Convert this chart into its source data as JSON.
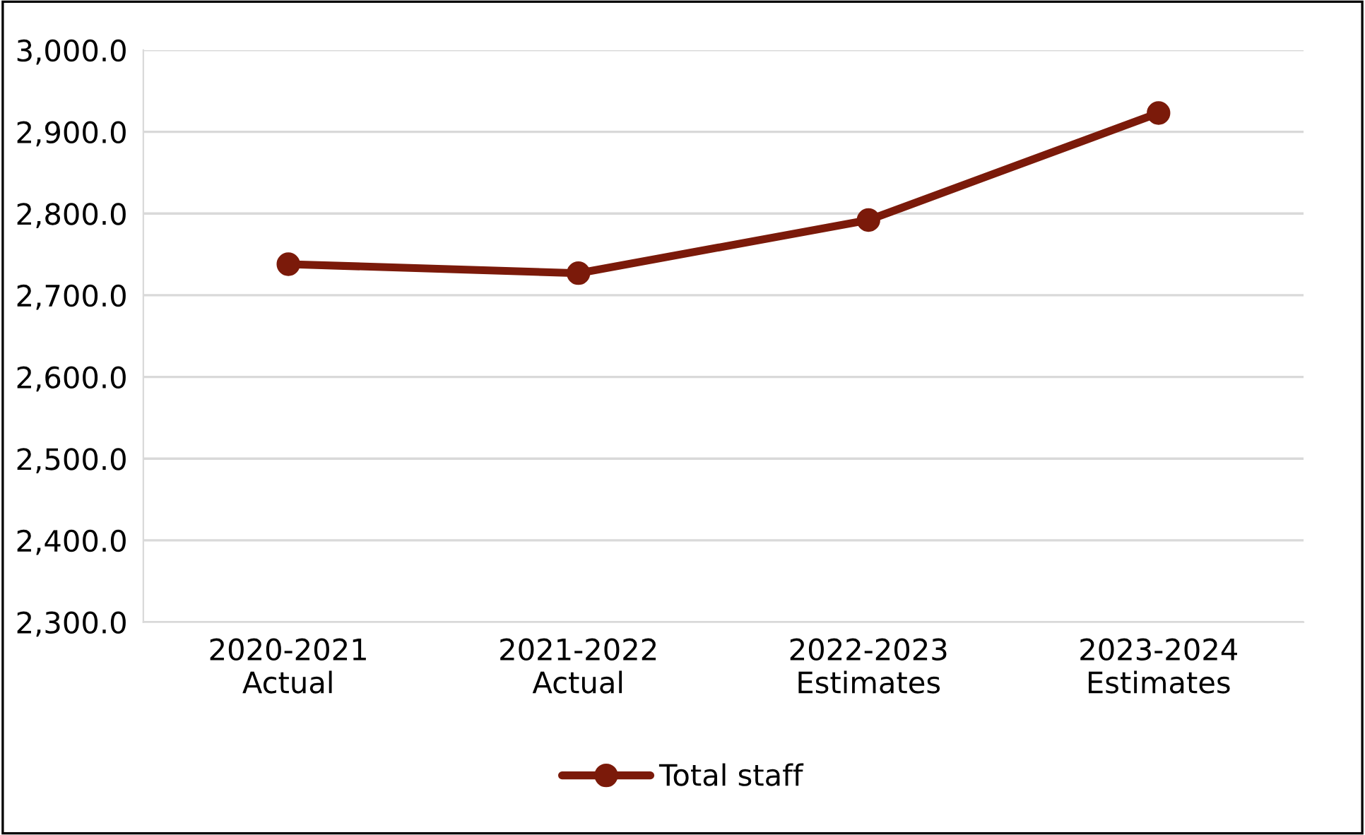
{
  "chart_data": {
    "type": "line",
    "categories": [
      "2020-2021\nActual",
      "2021-2022\nActual",
      "2022-2023\nEstimates",
      "2023-2024\nEstimates"
    ],
    "series": [
      {
        "name": "Total staff",
        "color": "#7b1a0a",
        "values": [
          2738,
          2727,
          2792,
          2923
        ]
      }
    ],
    "ylim": [
      2300,
      3000
    ],
    "yticks": [
      {
        "value": 2300,
        "label": "2,300.0"
      },
      {
        "value": 2400,
        "label": "2,400.0"
      },
      {
        "value": 2500,
        "label": "2,500.0"
      },
      {
        "value": 2600,
        "label": "2,600.0"
      },
      {
        "value": 2700,
        "label": "2,700.0"
      },
      {
        "value": 2800,
        "label": "2,800.0"
      },
      {
        "value": 2900,
        "label": "2,900.0"
      },
      {
        "value": 3000,
        "label": "3,000.0"
      }
    ],
    "grid": "y",
    "legend": "bottom",
    "marker": "circle",
    "line_style": "solid"
  }
}
